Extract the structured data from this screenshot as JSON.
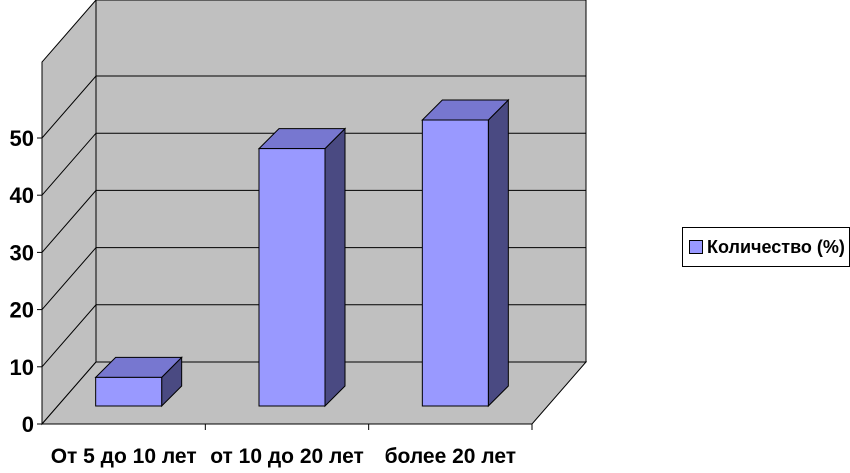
{
  "chart_data": {
    "type": "bar",
    "style": "3d-column",
    "categories": [
      "От 5 до 10 лет",
      "от 10 до 20 лет",
      "более 20 лет"
    ],
    "series": [
      {
        "name": "Количество (%)",
        "values": [
          5,
          45,
          50
        ]
      }
    ],
    "yticks": [
      "0",
      "10",
      "20",
      "30",
      "40",
      "50"
    ],
    "ylim": [
      0,
      50
    ],
    "grid": true,
    "legend_position": "right",
    "colors": {
      "wall": "#c0c0c0",
      "bar_front": "#9999ff",
      "bar_top": "#7777d0",
      "bar_side": "#4a4a82",
      "grid": "#000000"
    }
  }
}
